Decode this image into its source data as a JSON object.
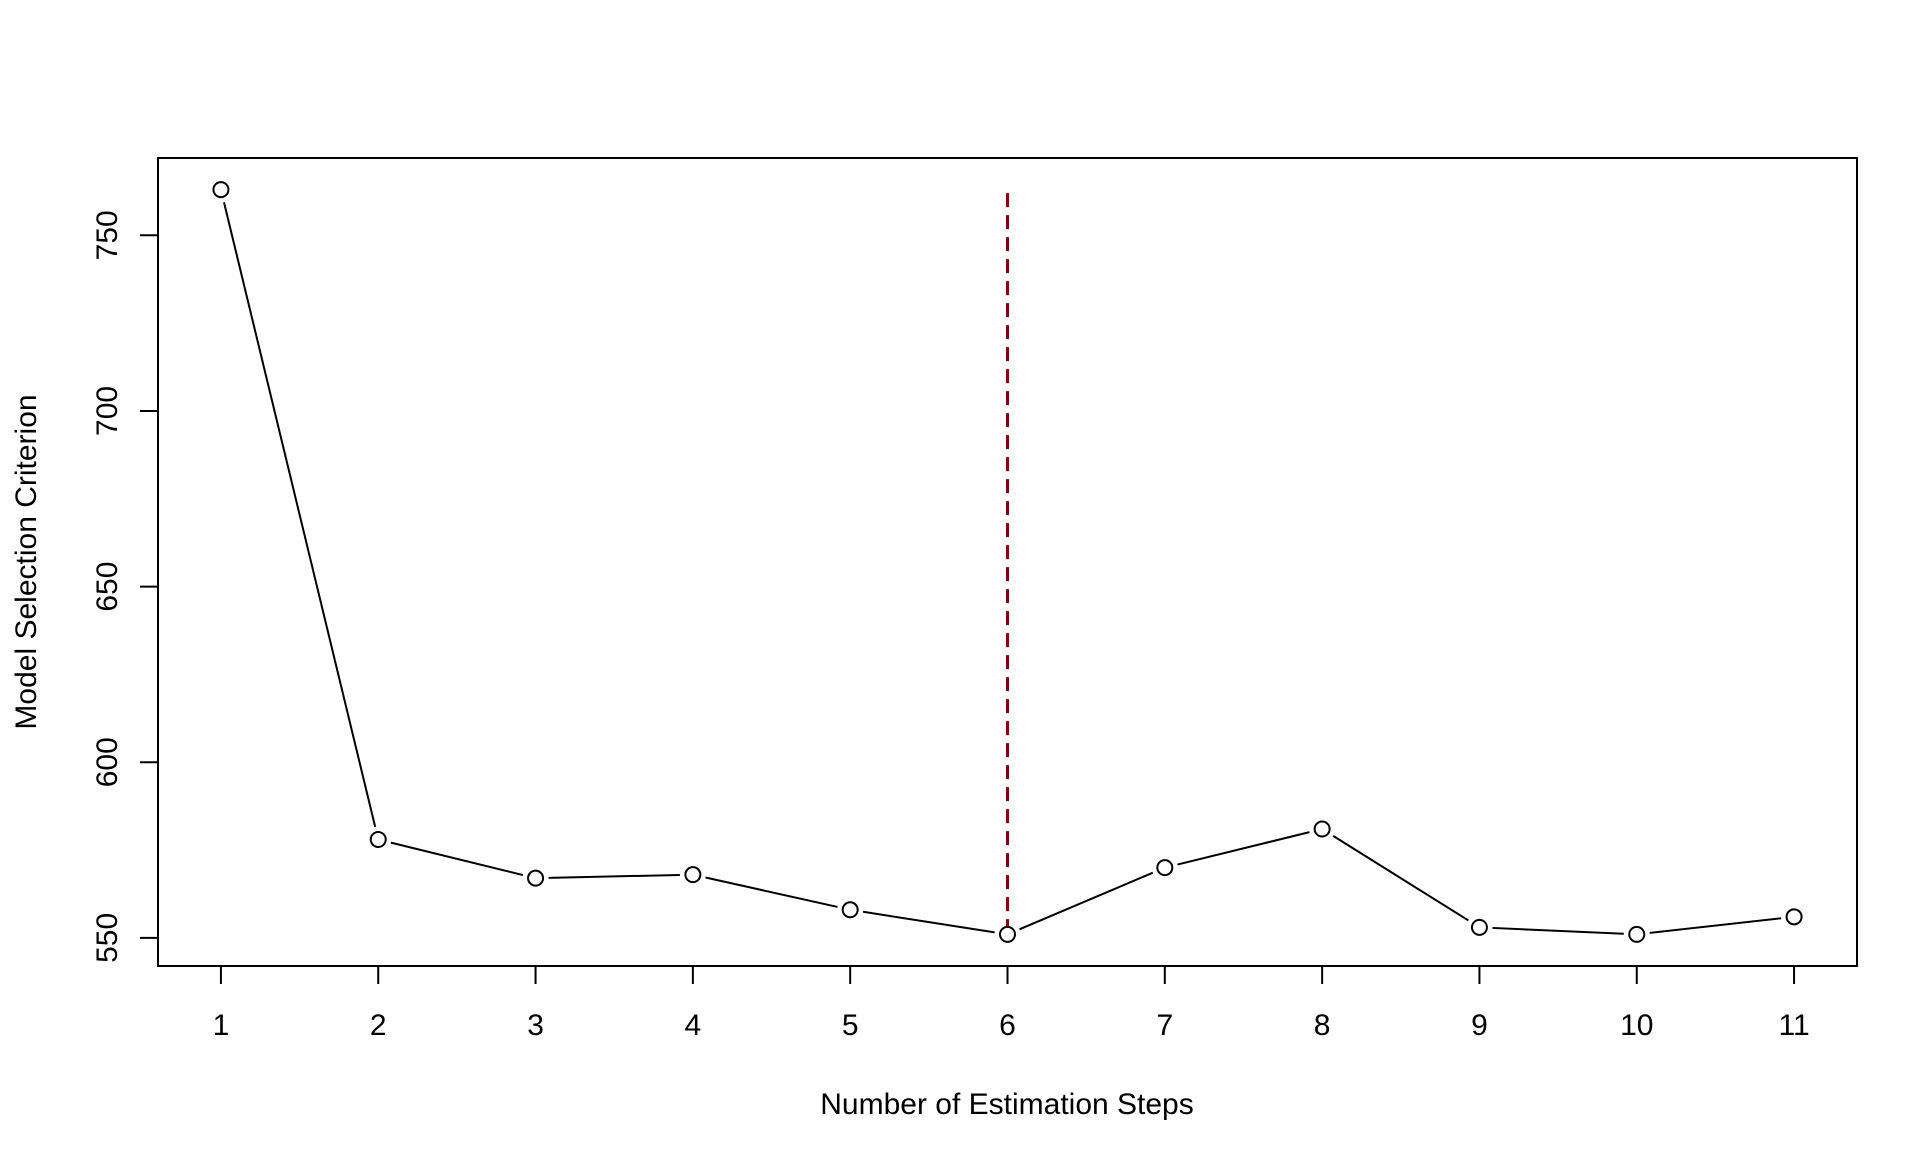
{
  "chart_data": {
    "type": "line",
    "title": "",
    "xlabel": "Number of Estimation Steps",
    "ylabel": "Model Selection Criterion",
    "x": [
      1,
      2,
      3,
      4,
      5,
      6,
      7,
      8,
      9,
      10,
      11
    ],
    "x_tick_labels": [
      "1",
      "2",
      "3",
      "4",
      "5",
      "6",
      "7",
      "8",
      "9",
      "10",
      "11"
    ],
    "y_ticks": [
      550,
      600,
      650,
      700,
      750
    ],
    "y_tick_labels": [
      "550",
      "600",
      "650",
      "700",
      "750"
    ],
    "xlim": [
      0.6,
      11.4
    ],
    "ylim": [
      542,
      772
    ],
    "grid": false,
    "series": [
      {
        "values": [
          763,
          578,
          567,
          568,
          558,
          551,
          570,
          581,
          553,
          551,
          556
        ],
        "marker": "open-circle",
        "color": "#000000"
      }
    ],
    "vline": {
      "x": 6,
      "y_top": 762,
      "style": "dashed",
      "color": "#7a0a0a"
    }
  }
}
